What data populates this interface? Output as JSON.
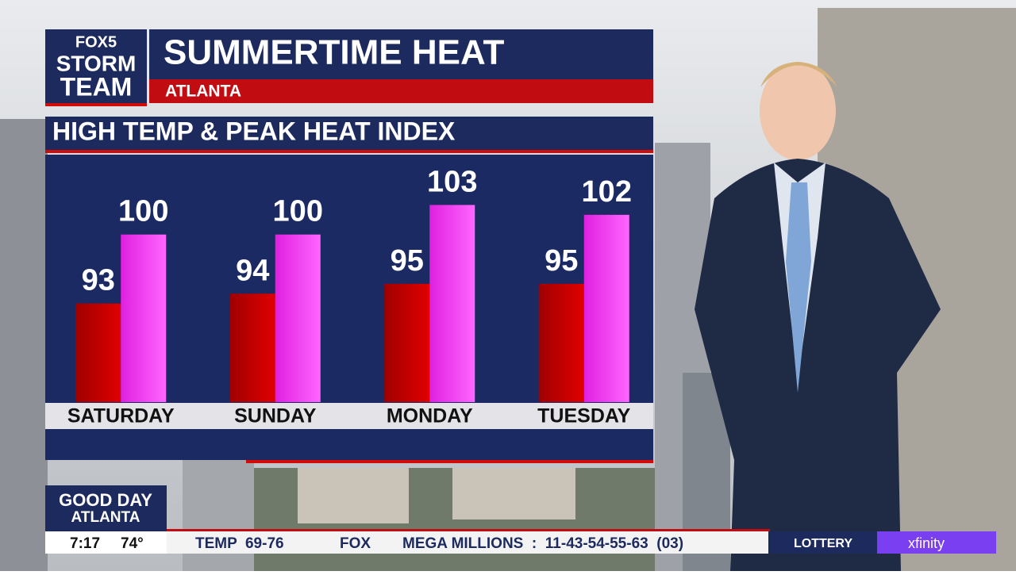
{
  "branding": {
    "logo_top": "FOX5",
    "logo_mid": "STORM",
    "logo_bottom": "TEAM",
    "show_top": "GOOD DAY",
    "show_bottom": "ATLANTA"
  },
  "chart_data": {
    "type": "bar",
    "title": "SUMMERTIME HEAT",
    "subtitle": "ATLANTA",
    "heading": "HIGH TEMP & PEAK HEAT INDEX",
    "categories": [
      "SATURDAY",
      "SUNDAY",
      "MONDAY",
      "TUESDAY"
    ],
    "series": [
      {
        "color": "#c80000",
        "values": [
          93,
          94,
          95,
          95
        ]
      },
      {
        "color": "#f03cf0",
        "values": [
          100,
          100,
          103,
          102
        ]
      }
    ],
    "ylim": [
      83,
      104
    ]
  },
  "ticker": {
    "time": "7:17",
    "temp": "74°",
    "item1": "TEMP  69-76",
    "network": "FOX",
    "item2": "MEGA MILLIONS  :  11-43-54-55-63  (03)",
    "tab": "LOTTERY",
    "sponsor": "xfinity"
  }
}
